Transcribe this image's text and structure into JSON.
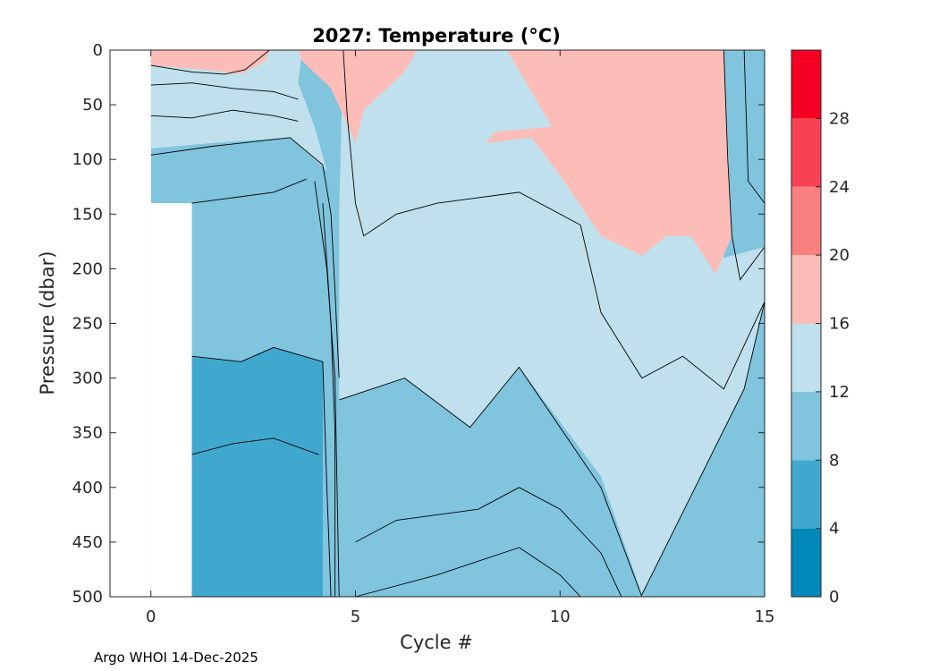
{
  "chart_data": {
    "type": "filled-contour",
    "title": "2027:  Temperature (°C)",
    "xlabel": "Cycle #",
    "ylabel": "Pressure (dbar)",
    "xlim": [
      -1,
      15
    ],
    "ylim": [
      0,
      500
    ],
    "y_reversed": true,
    "xticks": [
      "0",
      "5",
      "10",
      "15"
    ],
    "xtick_values": [
      0,
      5,
      10,
      15
    ],
    "yticks": [
      "0",
      "50",
      "100",
      "150",
      "200",
      "250",
      "300",
      "350",
      "400",
      "450",
      "500"
    ],
    "ytick_values": [
      0,
      50,
      100,
      150,
      200,
      250,
      300,
      350,
      400,
      450,
      500
    ],
    "colorbar": {
      "ticks": [
        "0",
        "4",
        "8",
        "12",
        "16",
        "20",
        "24",
        "28"
      ],
      "tick_values": [
        0,
        4,
        8,
        12,
        16,
        20,
        24,
        28
      ],
      "range": [
        0,
        32
      ],
      "colors": [
        "#0088b8",
        "#40a8ce",
        "#80c4de",
        "#bfe0ec",
        "#fcbdb8",
        "#fa8080",
        "#f74254",
        "#f50024"
      ]
    },
    "regions": [
      {
        "band": "8-12",
        "color": "#80c4de",
        "points": [
          [
            1,
            140
          ],
          [
            3.8,
            118
          ],
          [
            4.5,
            150
          ],
          [
            4.6,
            300
          ],
          [
            4.7,
            500
          ],
          [
            1,
            500
          ]
        ]
      },
      {
        "band": "4-8",
        "color": "#40a8ce",
        "points": [
          [
            1,
            280
          ],
          [
            2.2,
            285
          ],
          [
            3,
            272
          ],
          [
            4.2,
            285
          ],
          [
            4.2,
            500
          ],
          [
            1,
            500
          ]
        ]
      },
      {
        "band": "8-12",
        "color": "#80c4de",
        "points": [
          [
            4.4,
            320
          ],
          [
            7.8,
            340
          ],
          [
            9,
            290
          ],
          [
            11,
            400
          ],
          [
            12,
            500
          ],
          [
            4.6,
            500
          ]
        ]
      },
      {
        "band": "12-16",
        "color": "#bfe0ec",
        "points": [
          [
            4.6,
            320
          ],
          [
            6.2,
            300
          ],
          [
            7.8,
            345
          ],
          [
            9,
            290
          ],
          [
            11,
            390
          ],
          [
            12,
            498
          ],
          [
            14.5,
            310
          ],
          [
            15,
            230
          ],
          [
            15,
            180
          ],
          [
            14,
            190
          ],
          [
            14,
            100
          ],
          [
            13.3,
            0
          ],
          [
            4.7,
            0
          ],
          [
            4.6,
            150
          ]
        ]
      },
      {
        "band": "12-16",
        "color": "#bfe0ec",
        "points": [
          [
            0,
            0
          ],
          [
            3.7,
            0
          ],
          [
            3.6,
            30
          ],
          [
            4,
            70
          ],
          [
            4.3,
            110
          ],
          [
            3.4,
            80
          ],
          [
            1.5,
            85
          ],
          [
            0,
            90
          ]
        ]
      },
      {
        "band": "16-20",
        "color": "#fcbdb8",
        "points": [
          [
            0,
            0
          ],
          [
            2.9,
            0
          ],
          [
            2.8,
            10
          ],
          [
            2.2,
            22
          ],
          [
            1.4,
            18
          ],
          [
            0,
            14
          ]
        ]
      },
      {
        "band": "16-20",
        "color": "#fcbdb8",
        "points": [
          [
            3.6,
            0
          ],
          [
            6.5,
            0
          ],
          [
            6.2,
            20
          ],
          [
            5.2,
            55
          ],
          [
            5.0,
            85
          ],
          [
            4.7,
            60
          ],
          [
            4.4,
            35
          ],
          [
            3.7,
            10
          ]
        ]
      },
      {
        "band": "16-20",
        "color": "#fcbdb8",
        "points": [
          [
            8.7,
            0
          ],
          [
            14,
            0
          ],
          [
            14.2,
            170
          ],
          [
            13.8,
            205
          ],
          [
            13.2,
            170
          ],
          [
            12.6,
            170
          ],
          [
            12.0,
            188
          ],
          [
            11.0,
            170
          ],
          [
            10.0,
            115
          ],
          [
            9.3,
            80
          ],
          [
            8.2,
            85
          ],
          [
            8.4,
            75
          ],
          [
            9.8,
            70
          ]
        ]
      }
    ],
    "contours": [
      [
        [
          0,
          14
        ],
        [
          1,
          20
        ],
        [
          1.8,
          22
        ],
        [
          2.3,
          18
        ],
        [
          2.9,
          0
        ]
      ],
      [
        [
          0,
          32
        ],
        [
          1,
          30
        ],
        [
          2,
          35
        ],
        [
          3,
          38
        ],
        [
          3.6,
          45
        ]
      ],
      [
        [
          0,
          60
        ],
        [
          1,
          62
        ],
        [
          2,
          55
        ],
        [
          3,
          60
        ],
        [
          3.6,
          65
        ]
      ],
      [
        [
          0,
          96
        ],
        [
          1.5,
          88
        ],
        [
          3.4,
          80
        ],
        [
          4.2,
          105
        ],
        [
          4.4,
          150
        ],
        [
          4.5,
          220
        ],
        [
          4.6,
          300
        ]
      ],
      [
        [
          1,
          140
        ],
        [
          2,
          135
        ],
        [
          3,
          130
        ],
        [
          3.8,
          118
        ]
      ],
      [
        [
          1,
          280
        ],
        [
          2.2,
          285
        ],
        [
          3,
          272
        ],
        [
          4.2,
          285
        ],
        [
          4.3,
          400
        ],
        [
          4.4,
          500
        ]
      ],
      [
        [
          1,
          370
        ],
        [
          2,
          360
        ],
        [
          3,
          355
        ],
        [
          4.1,
          370
        ]
      ],
      [
        [
          4.0,
          120
        ],
        [
          4.3,
          200
        ],
        [
          4.5,
          300
        ],
        [
          4.55,
          400
        ],
        [
          4.6,
          500
        ]
      ],
      [
        [
          4.2,
          140
        ],
        [
          4.4,
          250
        ],
        [
          4.5,
          350
        ],
        [
          4.5,
          500
        ]
      ],
      [
        [
          4.6,
          320
        ],
        [
          6.2,
          300
        ],
        [
          7.8,
          345
        ],
        [
          9,
          290
        ],
        [
          11,
          400
        ],
        [
          12,
          500
        ]
      ],
      [
        [
          12,
          498
        ],
        [
          14.5,
          310
        ],
        [
          15,
          230
        ]
      ],
      [
        [
          5,
          450
        ],
        [
          6,
          430
        ],
        [
          8,
          420
        ],
        [
          9,
          400
        ],
        [
          10,
          420
        ],
        [
          11,
          460
        ],
        [
          11.5,
          500
        ]
      ],
      [
        [
          5,
          500
        ],
        [
          7,
          480
        ],
        [
          9,
          455
        ],
        [
          10,
          480
        ],
        [
          10.5,
          500
        ]
      ],
      [
        [
          4.7,
          0
        ],
        [
          4.8,
          60
        ],
        [
          5.0,
          140
        ],
        [
          5.2,
          170
        ],
        [
          6,
          150
        ],
        [
          7,
          140
        ],
        [
          9,
          130
        ],
        [
          10.5,
          160
        ],
        [
          11,
          240
        ],
        [
          12,
          300
        ],
        [
          13,
          280
        ],
        [
          14,
          310
        ],
        [
          15,
          230
        ]
      ],
      [
        [
          14,
          0
        ],
        [
          14.1,
          100
        ],
        [
          14.2,
          170
        ],
        [
          14.4,
          210
        ],
        [
          15,
          180
        ]
      ],
      [
        [
          14.5,
          0
        ],
        [
          14.6,
          120
        ],
        [
          15,
          140
        ]
      ]
    ],
    "footer": "Argo WHOI 14-Dec-2025"
  }
}
